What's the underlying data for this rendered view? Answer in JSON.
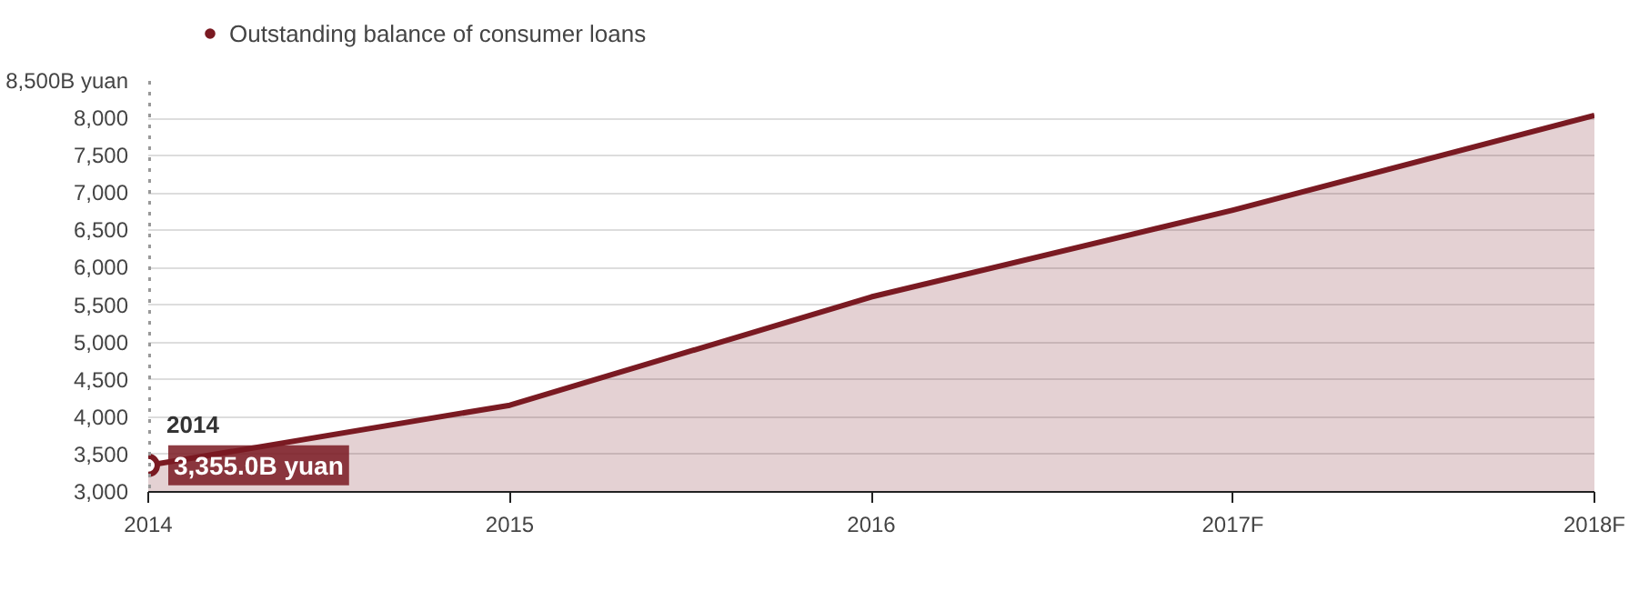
{
  "chart_data": {
    "type": "area",
    "categories": [
      "2014",
      "2015",
      "2016",
      "2017F",
      "2018F"
    ],
    "series": [
      {
        "name": "Outstanding balance of consumer loans",
        "color": "#7a1a22",
        "values": [
          3355,
          4160,
          5610,
          6770,
          8040
        ]
      }
    ],
    "ylim": [
      3000,
      8500
    ],
    "yticks": [
      {
        "value": 3000,
        "label": "3,000"
      },
      {
        "value": 3500,
        "label": "3,500"
      },
      {
        "value": 4000,
        "label": "4,000"
      },
      {
        "value": 4500,
        "label": "4,500"
      },
      {
        "value": 5000,
        "label": "5,000"
      },
      {
        "value": 5500,
        "label": "5,500"
      },
      {
        "value": 6000,
        "label": "6,000"
      },
      {
        "value": 6500,
        "label": "6,500"
      },
      {
        "value": 7000,
        "label": "7,000"
      },
      {
        "value": 7500,
        "label": "7,500"
      },
      {
        "value": 8000,
        "label": "8,000"
      },
      {
        "value": 8500,
        "label": "8,500B yuan"
      }
    ],
    "grid": "y",
    "legend": "top left",
    "ref_lines": [
      {
        "axis": "x",
        "value": "2014",
        "line_style": "dotted",
        "color": "#999999"
      }
    ],
    "annotations": [
      {
        "text": "2014",
        "x": "2014",
        "y": 3355
      },
      {
        "text": "3,355.0B yuan",
        "x": "2014",
        "y": 3355
      }
    ]
  }
}
